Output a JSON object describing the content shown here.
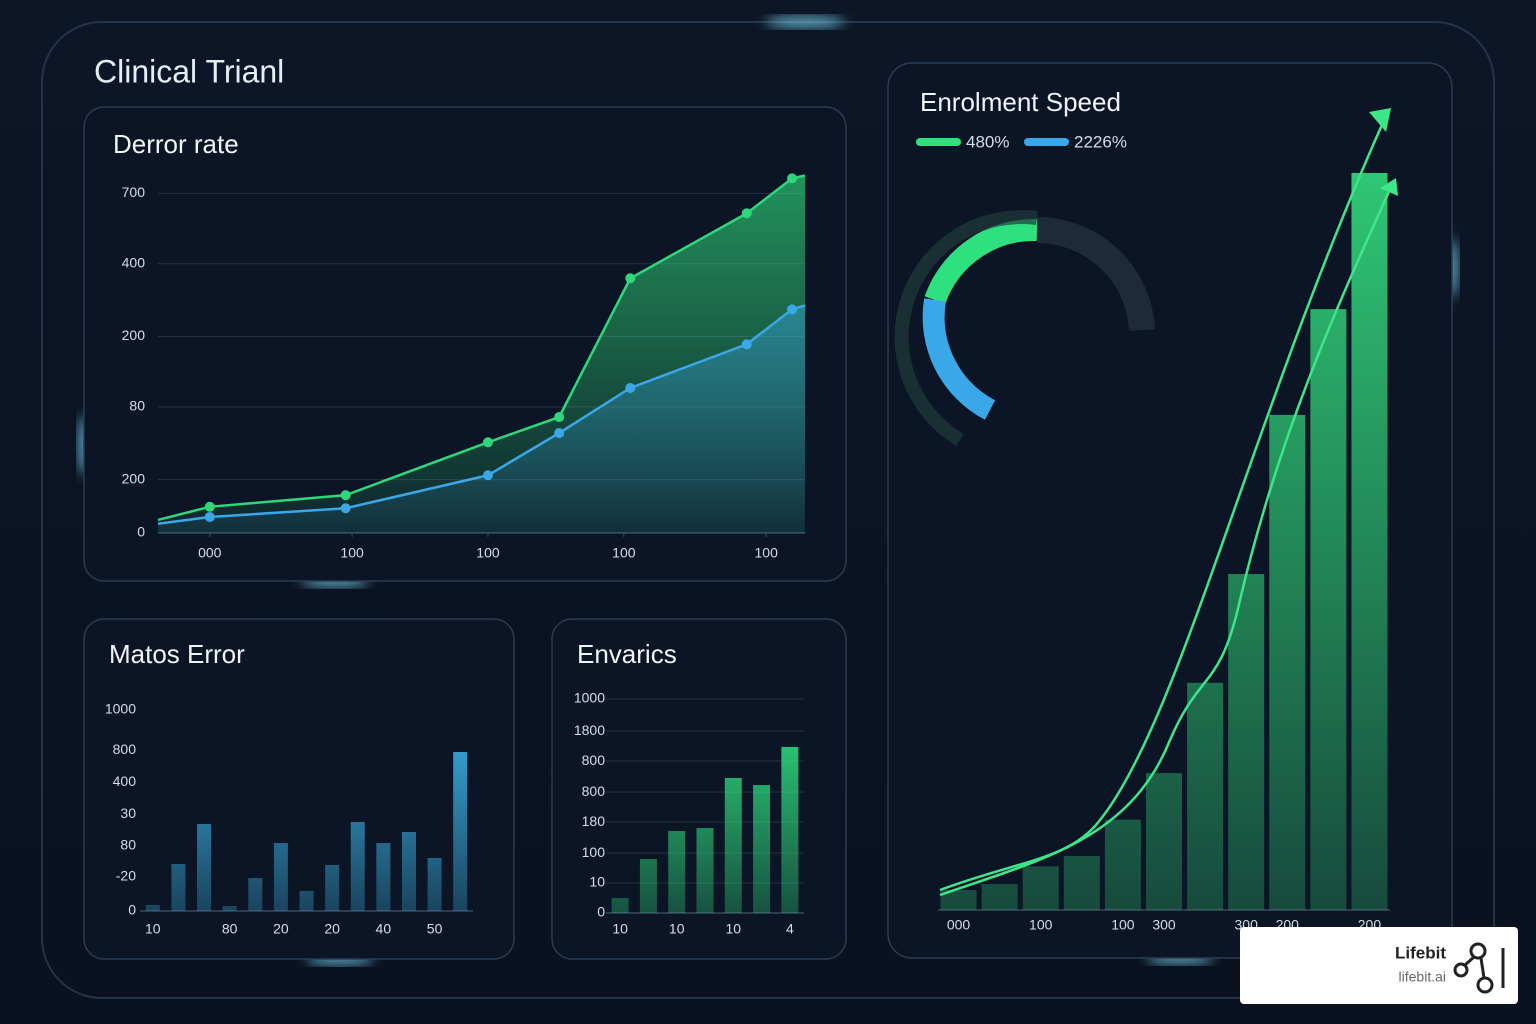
{
  "header": {
    "title": "Clinical Trianl"
  },
  "chart_data": [
    {
      "type": "area",
      "title": "Derror rate",
      "x": [
        0,
        8,
        29,
        51,
        62,
        73,
        91,
        98,
        100
      ],
      "xlim": [
        0,
        100
      ],
      "xticks": [
        {
          "value": 8,
          "label": "000"
        },
        {
          "value": 30,
          "label": "100"
        },
        {
          "value": 51,
          "label": "100"
        },
        {
          "value": 72,
          "label": "100"
        },
        {
          "value": 94,
          "label": "100"
        }
      ],
      "ylim": [
        0,
        740
      ],
      "yticks": [
        0,
        {
          "value": 110,
          "label": "200"
        },
        {
          "value": 260,
          "label": "80"
        },
        {
          "value": 405,
          "label": "200"
        },
        {
          "value": 555,
          "label": "400"
        },
        700
      ],
      "grid": true,
      "series": [
        {
          "color": "#2fd67a",
          "values": [
            27,
            54,
            78,
            187,
            239,
            525,
            659,
            731,
            737
          ]
        },
        {
          "color": "#3aa8e8",
          "values": [
            19,
            33,
            51,
            119,
            206,
            299,
            389,
            461,
            469
          ]
        }
      ]
    },
    {
      "type": "bar",
      "title": "Matos Error",
      "categories": [
        "10",
        null,
        null,
        "80",
        null,
        "20",
        null,
        "20",
        null,
        "40",
        null,
        "50",
        null
      ],
      "values": [
        30,
        234,
        433,
        25,
        164,
        338,
        100,
        229,
        443,
        338,
        393,
        264,
        791
      ],
      "color": "#3bb3e6",
      "ylim": [
        0,
        1000
      ],
      "yticks": [
        0,
        {
          "value": 170,
          "label": "-20"
        },
        {
          "value": 325,
          "label": "80"
        },
        {
          "value": 480,
          "label": "30"
        },
        {
          "value": 640,
          "label": "400"
        },
        800,
        1000
      ],
      "grid": false
    },
    {
      "type": "bar",
      "title": "Envarics",
      "categories": [
        "10",
        null,
        "10",
        null,
        "10",
        null,
        "4"
      ],
      "values": [
        70,
        252,
        383,
        397,
        631,
        598,
        776
      ],
      "color": "#2fe07f",
      "ylim": [
        0,
        1000
      ],
      "yticks": [
        0,
        {
          "value": 140,
          "label": "10"
        },
        {
          "value": 280,
          "label": "100"
        },
        {
          "value": 425,
          "label": "180"
        },
        {
          "value": 565,
          "label": "800"
        },
        {
          "value": 710,
          "label": "800"
        },
        {
          "value": 850,
          "label": "1800"
        },
        1000
      ],
      "grid": true
    },
    {
      "type": "bar",
      "title": "Enrolment Speed",
      "legend": [
        {
          "label": "480%",
          "color": "#2fe07f"
        },
        {
          "label": "2226%",
          "color": "#3aa8e8"
        }
      ],
      "categories": [
        "000",
        null,
        "100",
        null,
        "100",
        "300",
        null,
        "300",
        "200",
        null,
        "200"
      ],
      "values": [
        2.7,
        3.5,
        5.9,
        7.3,
        12.2,
        18.5,
        30.7,
        45.4,
        66.9,
        81.2,
        99.6
      ],
      "color": "#2fc774",
      "ylim": [
        0,
        100
      ],
      "grid": false
    }
  ],
  "badge": {
    "name": "Lifebit",
    "url": "lifebit.ai"
  }
}
